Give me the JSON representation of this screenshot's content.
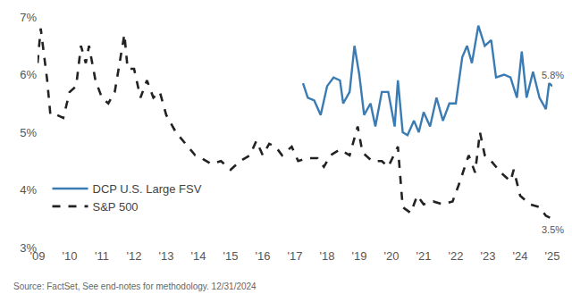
{
  "chart_data": {
    "type": "line",
    "source": "Source: FactSet, See end-notes for methodology. 12/31/2024",
    "xlim": [
      2009,
      2025
    ],
    "xticks": [
      {
        "value": 2009,
        "label": "'09"
      },
      {
        "value": 2010,
        "label": "'10"
      },
      {
        "value": 2011,
        "label": "'11"
      },
      {
        "value": 2012,
        "label": "'12"
      },
      {
        "value": 2013,
        "label": "'13"
      },
      {
        "value": 2014,
        "label": "'14"
      },
      {
        "value": 2015,
        "label": "'15"
      },
      {
        "value": 2016,
        "label": "'16"
      },
      {
        "value": 2017,
        "label": "'17"
      },
      {
        "value": 2018,
        "label": "'18"
      },
      {
        "value": 2019,
        "label": "'19"
      },
      {
        "value": 2020,
        "label": "'20"
      },
      {
        "value": 2021,
        "label": "'21"
      },
      {
        "value": 2022,
        "label": "'22"
      },
      {
        "value": 2023,
        "label": "'23"
      },
      {
        "value": 2024,
        "label": "'24"
      },
      {
        "value": 2025,
        "label": "'25"
      }
    ],
    "ylim": [
      3,
      7
    ],
    "yticks": [
      {
        "value": 3,
        "label": "3%"
      },
      {
        "value": 4,
        "label": "4%"
      },
      {
        "value": 5,
        "label": "5%"
      },
      {
        "value": 6,
        "label": "6%"
      },
      {
        "value": 7,
        "label": "7%"
      }
    ],
    "grid": false,
    "legend": "lower left",
    "series": [
      {
        "name": "DCP U.S. Large FSV",
        "color": "#3b7bb3",
        "line_style": "solid",
        "x": [
          2017.25,
          2017.4,
          2017.6,
          2017.8,
          2018.0,
          2018.2,
          2018.4,
          2018.5,
          2018.7,
          2018.85,
          2019.0,
          2019.15,
          2019.35,
          2019.5,
          2019.7,
          2019.9,
          2020.1,
          2020.2,
          2020.35,
          2020.5,
          2020.7,
          2020.85,
          2021.0,
          2021.2,
          2021.4,
          2021.6,
          2021.8,
          2022.0,
          2022.2,
          2022.35,
          2022.5,
          2022.7,
          2022.9,
          2023.1,
          2023.25,
          2023.5,
          2023.7,
          2023.9,
          2024.05,
          2024.2,
          2024.4,
          2024.6,
          2024.8,
          2024.9,
          2025.0
        ],
        "values": [
          5.85,
          5.6,
          5.55,
          5.3,
          5.8,
          5.95,
          5.9,
          5.5,
          5.7,
          6.5,
          6.0,
          5.3,
          5.5,
          5.1,
          5.7,
          5.7,
          5.1,
          5.9,
          5.0,
          4.95,
          5.2,
          5.0,
          5.35,
          5.1,
          5.6,
          5.2,
          5.5,
          5.5,
          6.3,
          6.5,
          6.2,
          6.85,
          6.5,
          6.6,
          5.95,
          6.0,
          5.95,
          5.6,
          6.4,
          5.6,
          6.05,
          5.6,
          5.4,
          5.85,
          5.8
        ]
      },
      {
        "name": "S&P 500",
        "color": "#222222",
        "line_style": "dashed",
        "x": [
          2009.0,
          2009.1,
          2009.3,
          2009.4,
          2009.6,
          2009.8,
          2010.0,
          2010.2,
          2010.35,
          2010.5,
          2010.6,
          2010.8,
          2011.0,
          2011.2,
          2011.4,
          2011.7,
          2011.8,
          2012.0,
          2012.2,
          2012.4,
          2012.6,
          2012.8,
          2013.0,
          2013.3,
          2013.6,
          2013.9,
          2014.1,
          2014.4,
          2014.7,
          2015.0,
          2015.3,
          2015.6,
          2015.8,
          2016.0,
          2016.2,
          2016.4,
          2016.6,
          2016.9,
          2017.1,
          2017.4,
          2017.7,
          2017.9,
          2018.1,
          2018.4,
          2018.7,
          2018.95,
          2019.1,
          2019.4,
          2019.7,
          2019.9,
          2020.2,
          2020.35,
          2020.6,
          2020.8,
          2021.0,
          2021.3,
          2021.6,
          2021.9,
          2022.1,
          2022.4,
          2022.6,
          2022.75,
          2022.9,
          2023.1,
          2023.4,
          2023.7,
          2023.8,
          2024.0,
          2024.3,
          2024.6,
          2024.8,
          2025.0
        ],
        "values": [
          6.2,
          6.8,
          5.9,
          5.3,
          5.3,
          5.25,
          5.7,
          5.8,
          6.5,
          6.2,
          6.5,
          5.9,
          5.6,
          5.5,
          5.7,
          6.7,
          6.1,
          6.1,
          5.6,
          5.9,
          5.6,
          5.7,
          5.3,
          5.0,
          4.8,
          4.6,
          4.55,
          4.45,
          4.5,
          4.35,
          4.5,
          4.6,
          4.85,
          4.6,
          4.8,
          4.75,
          4.6,
          4.75,
          4.5,
          4.55,
          4.55,
          4.4,
          4.6,
          4.7,
          4.6,
          5.1,
          4.65,
          4.5,
          4.5,
          4.4,
          4.75,
          3.7,
          3.6,
          3.9,
          3.75,
          3.8,
          3.75,
          3.8,
          4.1,
          4.6,
          4.3,
          5.0,
          4.6,
          4.5,
          4.3,
          4.15,
          4.35,
          3.9,
          3.75,
          3.7,
          3.55,
          3.5
        ]
      }
    ],
    "annotations": [
      {
        "text": "5.8%",
        "x": 2025,
        "y": 5.8
      },
      {
        "text": "3.5%",
        "x": 2025,
        "y": 3.5
      }
    ]
  }
}
